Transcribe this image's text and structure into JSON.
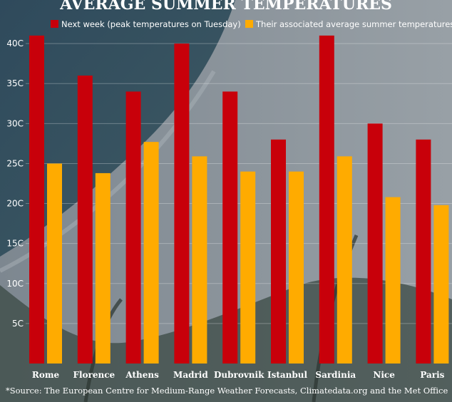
{
  "chart_data": {
    "type": "bar",
    "title": "AVERAGE SUMMER TEMPERATURES",
    "categories": [
      "Rome",
      "Florence",
      "Athens",
      "Madrid",
      "Dubrovnik",
      "Istanbul",
      "Sardinia",
      "Nice",
      "Paris"
    ],
    "series": [
      {
        "name": "Next week (peak temperatures on Tuesday)",
        "color": "#c8000a",
        "values": [
          41,
          36,
          34,
          40,
          34,
          28,
          41,
          30,
          28
        ]
      },
      {
        "name": "Their associated average summer temperatures",
        "color": "#ffab00",
        "values": [
          25,
          23.8,
          27.7,
          25.9,
          24,
          24,
          25.9,
          20.8,
          19.8
        ]
      }
    ],
    "yticks": [
      "5C",
      "10C",
      "15C",
      "20C",
      "25C",
      "30C",
      "35C",
      "40C"
    ],
    "ylim": [
      0,
      45
    ],
    "grid": true,
    "legend_position": "top"
  },
  "source": "*Source: The European Centre for Medium-Range Weather Forecasts, Climatedata.org and the Met Office"
}
